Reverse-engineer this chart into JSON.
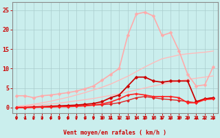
{
  "background_color": "#caeeed",
  "grid_color": "#aacccc",
  "title": "Vent moyen/en rafales ( km/h )",
  "x_ticks": [
    0,
    1,
    2,
    3,
    4,
    5,
    6,
    7,
    8,
    9,
    10,
    11,
    12,
    13,
    14,
    15,
    16,
    17,
    18,
    19,
    20,
    21,
    22,
    23
  ],
  "y_ticks": [
    0,
    5,
    10,
    15,
    20,
    25
  ],
  "ylim": [
    -1.5,
    27
  ],
  "xlim": [
    -0.5,
    23.5
  ],
  "lines": [
    {
      "x": [
        0,
        1,
        2,
        3,
        4,
        5,
        6,
        7,
        8,
        9,
        10,
        11,
        12,
        13,
        14,
        15,
        16,
        17,
        18,
        19,
        20,
        21,
        22,
        23
      ],
      "y": [
        0.2,
        0.3,
        0.5,
        0.7,
        0.9,
        1.1,
        1.4,
        1.7,
        2.0,
        2.3,
        2.7,
        3.1,
        3.5,
        4.0,
        4.5,
        5.0,
        5.5,
        6.0,
        6.4,
        6.8,
        7.2,
        7.5,
        7.8,
        8.1
      ],
      "color": "#ffbbbb",
      "lw": 1.0,
      "marker": null
    },
    {
      "x": [
        0,
        1,
        2,
        3,
        4,
        5,
        6,
        7,
        8,
        9,
        10,
        11,
        12,
        13,
        14,
        15,
        16,
        17,
        18,
        19,
        20,
        21,
        22,
        23
      ],
      "y": [
        0.3,
        0.5,
        0.8,
        1.2,
        1.6,
        2.1,
        2.6,
        3.2,
        3.8,
        4.5,
        5.2,
        6.0,
        7.0,
        8.0,
        9.2,
        10.4,
        11.5,
        12.5,
        13.0,
        13.5,
        13.8,
        14.0,
        14.2,
        14.5
      ],
      "color": "#ffbbbb",
      "lw": 1.0,
      "marker": null
    },
    {
      "x": [
        0,
        1,
        2,
        3,
        4,
        5,
        6,
        7,
        8,
        9,
        10,
        11,
        12,
        13,
        14,
        15,
        16,
        17,
        18,
        19,
        20,
        21,
        22,
        23
      ],
      "y": [
        3.0,
        3.0,
        2.5,
        3.0,
        3.2,
        3.5,
        3.8,
        4.2,
        4.8,
        5.5,
        7.0,
        8.5,
        10.0,
        18.5,
        24.0,
        24.5,
        23.5,
        18.5,
        19.2,
        14.5,
        8.5,
        5.5,
        5.8,
        10.5
      ],
      "color": "#ffaaaa",
      "lw": 1.2,
      "marker": "D",
      "markersize": 2.5
    },
    {
      "x": [
        0,
        1,
        2,
        3,
        4,
        5,
        6,
        7,
        8,
        9,
        10,
        11,
        12,
        13,
        14,
        15,
        16,
        17,
        18,
        19,
        20,
        21,
        22,
        23
      ],
      "y": [
        0.0,
        0.0,
        0.1,
        0.1,
        0.2,
        0.3,
        0.3,
        0.4,
        0.5,
        0.6,
        0.7,
        0.9,
        1.2,
        1.8,
        2.5,
        2.8,
        2.5,
        2.2,
        2.0,
        1.8,
        1.5,
        1.2,
        2.2,
        2.5
      ],
      "color": "#dd2222",
      "lw": 1.0,
      "marker": "D",
      "markersize": 2.0
    },
    {
      "x": [
        0,
        1,
        2,
        3,
        4,
        5,
        6,
        7,
        8,
        9,
        10,
        11,
        12,
        13,
        14,
        15,
        16,
        17,
        18,
        19,
        20,
        21,
        22,
        23
      ],
      "y": [
        0.0,
        0.0,
        0.1,
        0.2,
        0.3,
        0.4,
        0.5,
        0.6,
        0.8,
        1.0,
        1.5,
        2.5,
        3.2,
        5.5,
        7.8,
        7.8,
        6.8,
        6.5,
        6.8,
        6.8,
        6.8,
        1.5,
        2.2,
        2.5
      ],
      "color": "#cc0000",
      "lw": 1.3,
      "marker": "D",
      "markersize": 2.5
    },
    {
      "x": [
        0,
        1,
        2,
        3,
        4,
        5,
        6,
        7,
        8,
        9,
        10,
        11,
        12,
        13,
        14,
        15,
        16,
        17,
        18,
        19,
        20,
        21,
        22,
        23
      ],
      "y": [
        0.0,
        0.0,
        0.0,
        0.1,
        0.1,
        0.2,
        0.2,
        0.3,
        0.4,
        0.6,
        0.9,
        1.4,
        2.2,
        3.2,
        3.5,
        3.2,
        2.8,
        2.8,
        2.8,
        2.5,
        1.2,
        1.2,
        2.0,
        2.2
      ],
      "color": "#ff2222",
      "lw": 1.2,
      "marker": "D",
      "markersize": 2.0
    }
  ],
  "arrow_color": "#cc0000",
  "axis_label_color": "#cc0000",
  "tick_color": "#cc0000",
  "spine_color": "#888888"
}
